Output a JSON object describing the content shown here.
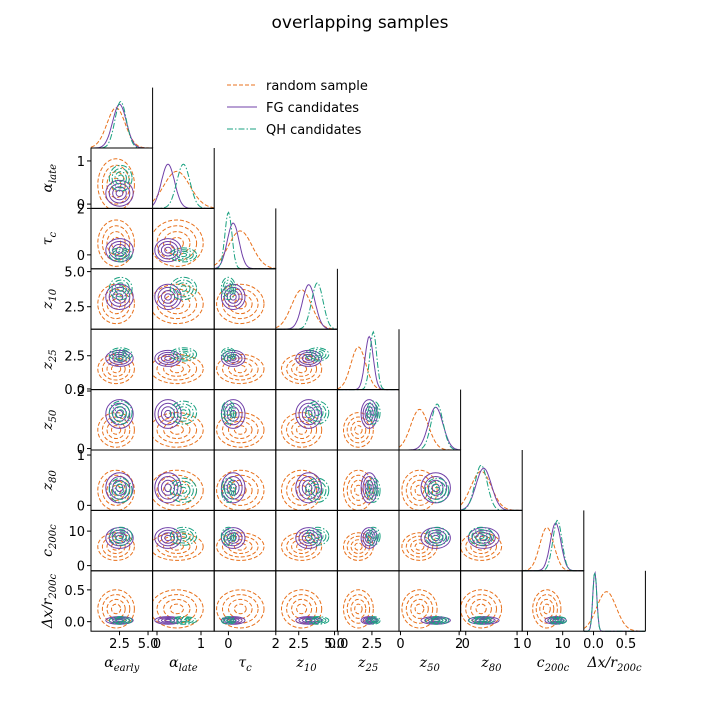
{
  "chart_data": {
    "type": "corner",
    "title": "overlapping samples",
    "variables": [
      "alpha_early",
      "alpha_late",
      "tau_c",
      "z10",
      "z25",
      "z50",
      "z80",
      "c200c",
      "dx_r200c"
    ],
    "axis_labels": {
      "alpha_early": "α_early",
      "alpha_late": "α_late",
      "tau_c": "τ_c",
      "z10": "z_10",
      "z25": "z_25",
      "z50": "z_50",
      "z80": "z_80",
      "c200c": "c_200c",
      "dx_r200c": "Δx/r_200c"
    },
    "ranges": {
      "alpha_early": [
        0,
        5.4
      ],
      "alpha_late": [
        -0.1,
        1.3
      ],
      "tau_c": [
        -0.6,
        2.0
      ],
      "z10": [
        0.9,
        5.2
      ],
      "z25": [
        -0.05,
        4.5
      ],
      "z50": [
        -0.05,
        2.05
      ],
      "z80": [
        -0.1,
        1.1
      ],
      "c200c": [
        -1.5,
        16
      ],
      "dx_r200c": [
        -0.15,
        0.8
      ]
    },
    "ticks": {
      "alpha_early": [
        2.5,
        5.0
      ],
      "alpha_late": [
        0,
        1
      ],
      "tau_c": [
        0,
        2
      ],
      "z10": [
        2.5,
        5.0
      ],
      "z25": [
        0.0,
        2.5
      ],
      "z50": [
        0,
        2
      ],
      "z80": [
        0,
        1
      ],
      "c200c": [
        0,
        10
      ],
      "dx_r200c": [
        0.0,
        0.5
      ]
    },
    "tick_labels": {
      "alpha_early": [
        "2.5",
        "5.0"
      ],
      "alpha_late": [
        "0",
        "1"
      ],
      "tau_c": [
        "0",
        "2"
      ],
      "z10": [
        "2.5",
        "5.0"
      ],
      "z25": [
        "0.0",
        "2.5"
      ],
      "z50": [
        "0",
        "2"
      ],
      "z80": [
        "0",
        "1"
      ],
      "c200c": [
        "0",
        "10"
      ],
      "dx_r200c": [
        "0.0",
        "0.5"
      ]
    },
    "series": [
      {
        "name": "random sample",
        "color": "#e8711c",
        "dash": "dashed",
        "mean": {
          "alpha_early": 2.2,
          "alpha_late": 0.45,
          "tau_c": 0.5,
          "z10": 2.7,
          "z25": 1.5,
          "z50": 0.65,
          "z80": 0.3,
          "c200c": 5.5,
          "dx_r200c": 0.2
        },
        "sd": {
          "alpha_early": 0.8,
          "alpha_late": 0.3,
          "tau_c": 0.5,
          "z10": 0.7,
          "z25": 0.55,
          "z50": 0.3,
          "z80": 0.2,
          "c200c": 2.0,
          "dx_r200c": 0.15
        }
      },
      {
        "name": "FG candidates",
        "color": "#7040a8",
        "dash": "solid",
        "mean": {
          "alpha_early": 2.5,
          "alpha_late": 0.25,
          "tau_c": 0.2,
          "z10": 3.2,
          "z25": 2.3,
          "z50": 1.2,
          "z80": 0.35,
          "c200c": 8.0,
          "dx_r200c": 0.02
        },
        "sd": {
          "alpha_early": 0.6,
          "alpha_late": 0.15,
          "tau_c": 0.25,
          "z10": 0.45,
          "z25": 0.3,
          "z50": 0.25,
          "z80": 0.15,
          "c200c": 1.5,
          "dx_r200c": 0.03
        }
      },
      {
        "name": "QH candidates",
        "color": "#1aa180",
        "dash": "dashdot",
        "mean": {
          "alpha_early": 2.6,
          "alpha_late": 0.6,
          "tau_c": 0.0,
          "z10": 3.8,
          "z25": 2.6,
          "z50": 1.25,
          "z80": 0.3,
          "c200c": 8.5,
          "dx_r200c": 0.02
        },
        "sd": {
          "alpha_early": 0.5,
          "alpha_late": 0.15,
          "tau_c": 0.15,
          "z10": 0.4,
          "z25": 0.25,
          "z50": 0.2,
          "z80": 0.12,
          "c200c": 1.3,
          "dx_r200c": 0.03
        }
      }
    ],
    "legend_position": "upper-center"
  }
}
